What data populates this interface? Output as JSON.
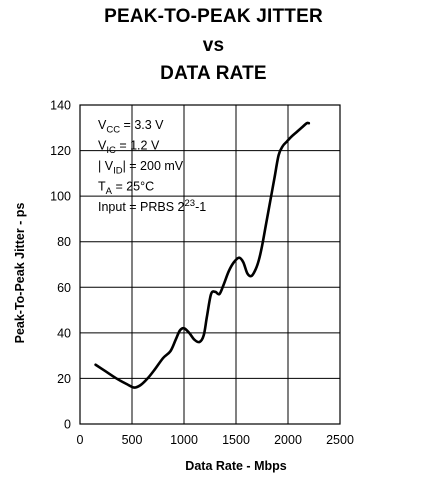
{
  "chart_data": {
    "type": "line",
    "title": [
      "PEAK-TO-PEAK JITTER",
      "vs",
      "DATA RATE"
    ],
    "xlabel": "Data Rate - Mbps",
    "ylabel": "Peak-To-Peak Jitter - ps",
    "xlim": [
      0,
      2500
    ],
    "ylim": [
      0,
      140
    ],
    "xticks": [
      0,
      500,
      1000,
      1500,
      2000,
      2500
    ],
    "yticks": [
      0,
      20,
      40,
      60,
      80,
      100,
      120,
      140
    ],
    "grid": true,
    "annotations": [
      {
        "id": "vcc",
        "base": "V",
        "sub": "CC",
        "after": " = 3.3 V"
      },
      {
        "id": "vic",
        "base": "V",
        "sub": "IC",
        "after": " = 1.2 V"
      },
      {
        "id": "vid",
        "before": "| V",
        "sub": "ID",
        "after": "| = 200 mV"
      },
      {
        "id": "ta",
        "base": "T",
        "sub": "A",
        "after": " = 25°C"
      },
      {
        "id": "input",
        "text": "Input = PRBS 2",
        "sup": "23",
        "after": "-1"
      }
    ],
    "series": [
      {
        "x": [
          150,
          250,
          350,
          450,
          520,
          580,
          650,
          720,
          800,
          870,
          920,
          960,
          1000,
          1050,
          1100,
          1150,
          1190,
          1220,
          1260,
          1300,
          1340,
          1380,
          1430,
          1480,
          1530,
          1570,
          1610,
          1650,
          1690,
          1720,
          1750,
          1790,
          1830,
          1870,
          1910,
          1950,
          1990,
          2030,
          2080,
          2130,
          2180,
          2200
        ],
        "y": [
          26,
          23,
          20,
          17.5,
          16,
          17,
          20,
          24,
          29,
          32,
          37,
          41,
          42,
          40,
          37,
          36,
          39,
          47,
          57,
          58,
          57,
          61,
          67,
          71,
          73,
          71,
          66,
          65,
          68,
          72,
          78,
          88,
          98,
          108,
          118,
          122,
          124,
          126,
          128,
          130,
          132,
          132
        ]
      }
    ]
  }
}
